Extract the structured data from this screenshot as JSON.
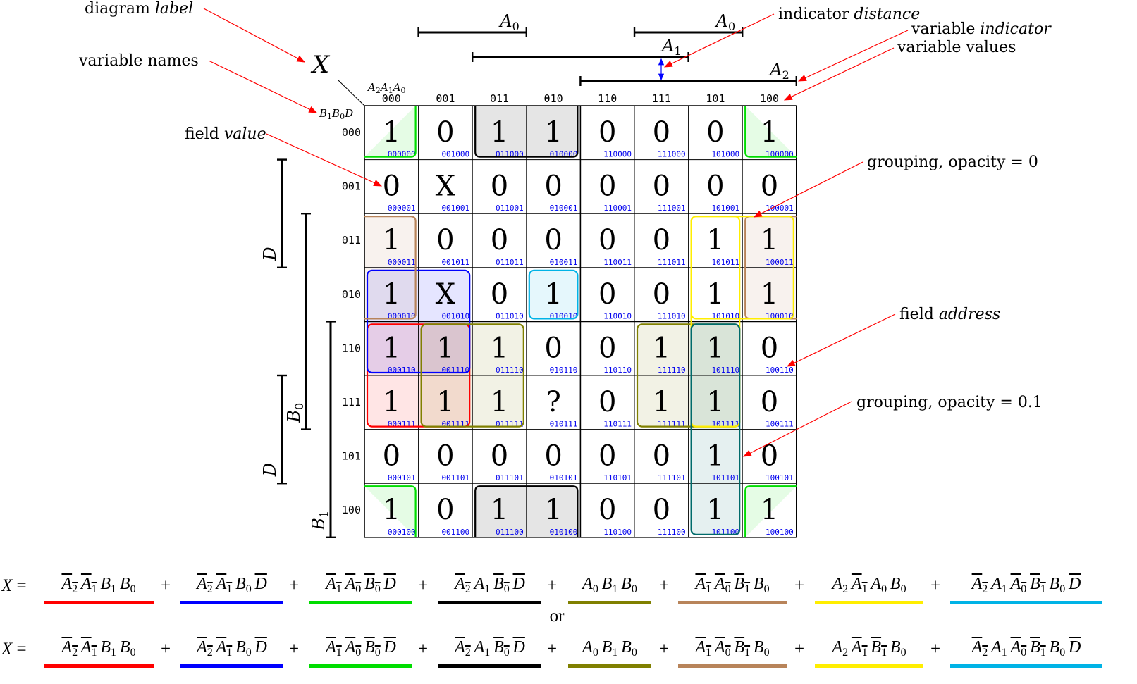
{
  "diagram_label": "X",
  "row_variables": "B1B0D",
  "col_variables": "A2A1A0",
  "columns": [
    "000",
    "001",
    "011",
    "010",
    "110",
    "111",
    "101",
    "100"
  ],
  "rows": [
    "000",
    "001",
    "011",
    "010",
    "110",
    "111",
    "101",
    "100"
  ],
  "values": [
    [
      "1",
      "0",
      "1",
      "1",
      "0",
      "0",
      "0",
      "1"
    ],
    [
      "0",
      "X",
      "0",
      "0",
      "0",
      "0",
      "0",
      "0"
    ],
    [
      "1",
      "0",
      "0",
      "0",
      "0",
      "0",
      "1",
      "1"
    ],
    [
      "1",
      "X",
      "0",
      "1",
      "0",
      "0",
      "1",
      "1"
    ],
    [
      "1",
      "1",
      "1",
      "0",
      "0",
      "1",
      "1",
      "0"
    ],
    [
      "1",
      "1",
      "1",
      "?",
      "0",
      "1",
      "1",
      "0"
    ],
    [
      "0",
      "0",
      "0",
      "0",
      "0",
      "0",
      "1",
      "0"
    ],
    [
      "1",
      "0",
      "1",
      "1",
      "0",
      "0",
      "1",
      "1"
    ]
  ],
  "top_indicators": [
    {
      "name": "A0",
      "from_col": 1,
      "to_col": 2,
      "level": 0
    },
    {
      "name": "A0",
      "from_col": 5,
      "to_col": 6,
      "level": 0
    },
    {
      "name": "A1",
      "from_col": 2,
      "to_col": 5,
      "level": 1
    },
    {
      "name": "A2",
      "from_col": 4,
      "to_col": 7,
      "level": 2
    }
  ],
  "left_indicators": [
    {
      "name": "D",
      "from_row": 1,
      "to_row": 2,
      "level": 0
    },
    {
      "name": "D",
      "from_row": 5,
      "to_row": 6,
      "level": 0
    },
    {
      "name": "B0",
      "from_row": 2,
      "to_row": 5,
      "level": 1
    },
    {
      "name": "B1",
      "from_row": 4,
      "to_row": 7,
      "level": 2
    }
  ],
  "groups": [
    {
      "color": "#ff0000",
      "r0": 4,
      "c0": 0,
      "r1": 5,
      "c1": 1,
      "opacity": 0.1
    },
    {
      "color": "#0000ff",
      "r0": 3,
      "c0": 0,
      "r1": 4,
      "c1": 1,
      "opacity": 0.1
    },
    {
      "color": "#00dd00",
      "r0": 0,
      "c0": 0,
      "r1": 0,
      "c1": 0,
      "opacity": 0.1,
      "wrap": "corner"
    },
    {
      "color": "#000000",
      "r0": 0,
      "c0": 2,
      "r1": 0,
      "c1": 3,
      "opacity": 0.1,
      "wrap": "vertical"
    },
    {
      "color": "#808000",
      "r0": 4,
      "c0": 1,
      "r1": 5,
      "c1": 2,
      "opacity": 0.1
    },
    {
      "color": "#808000",
      "r0": 4,
      "c0": 5,
      "r1": 5,
      "c1": 6,
      "opacity": 0.1
    },
    {
      "color": "#b8845a",
      "r0": 2,
      "c0": 0,
      "r1": 3,
      "c1": 0,
      "opacity": 0.1,
      "wrap": "horizontal"
    },
    {
      "color": "#ffee00",
      "r0": 2,
      "c0": 6,
      "r1": 3,
      "c1": 7,
      "opacity": 0
    },
    {
      "color": "#ffee00",
      "r0": 2,
      "c0": 6,
      "r1": 5,
      "c1": 6,
      "opacity": 0
    },
    {
      "color": "#00b3e6",
      "r0": 3,
      "c0": 3,
      "r1": 3,
      "c1": 3,
      "opacity": 0.1
    },
    {
      "color": "#006b6b",
      "r0": 4,
      "c0": 6,
      "r1": 7,
      "c1": 6,
      "opacity": 0.1
    }
  ],
  "annotations": {
    "diagram_label": "diagram label",
    "variable_names": "variable names",
    "field_value": "field value",
    "indicator_distance": "indicator distance",
    "variable_indicator": "variable indicator",
    "variable_values": "variable values",
    "grouping_opacity_0": "grouping, opacity = 0",
    "field_address": "field address",
    "grouping_opacity_01": "grouping, opacity = 0.1"
  },
  "equation": {
    "lhs": "X",
    "eq": "=",
    "plus": "+",
    "or": "or",
    "row1": [
      {
        "color": "#ff0000",
        "text": "A2 A1 B1 B0"
      },
      {
        "color": "#0000ff",
        "text": "A2 A1 B0 D"
      },
      {
        "color": "#00dd00",
        "text": "A1 A0 B0 D"
      },
      {
        "color": "#000000",
        "text": "A2 A1 B0 D"
      },
      {
        "color": "#808000",
        "text": "A0 B1 B0"
      },
      {
        "color": "#b8845a",
        "text": "A1 A0 B1 B0"
      },
      {
        "color": "#ffee00",
        "text": "A2 A1 A0 B0"
      },
      {
        "color": "#00b3e6",
        "text": "A2 A1 A0 B1 B0 D"
      }
    ],
    "row2": [
      {
        "color": "#ff0000",
        "text": "A2 A1 B1 B0"
      },
      {
        "color": "#0000ff",
        "text": "A2 A1 B0 D"
      },
      {
        "color": "#00dd00",
        "text": "A1 A0 B0 D"
      },
      {
        "color": "#000000",
        "text": "A2 A1 B0 D"
      },
      {
        "color": "#808000",
        "text": "A0 B1 B0"
      },
      {
        "color": "#b8845a",
        "text": "A1 A0 B1 B0"
      },
      {
        "color": "#ffee00",
        "text": "A2 A1 B1 B0"
      },
      {
        "color": "#00b3e6",
        "text": "A2 A1 A0 B1 B0 D"
      }
    ]
  }
}
